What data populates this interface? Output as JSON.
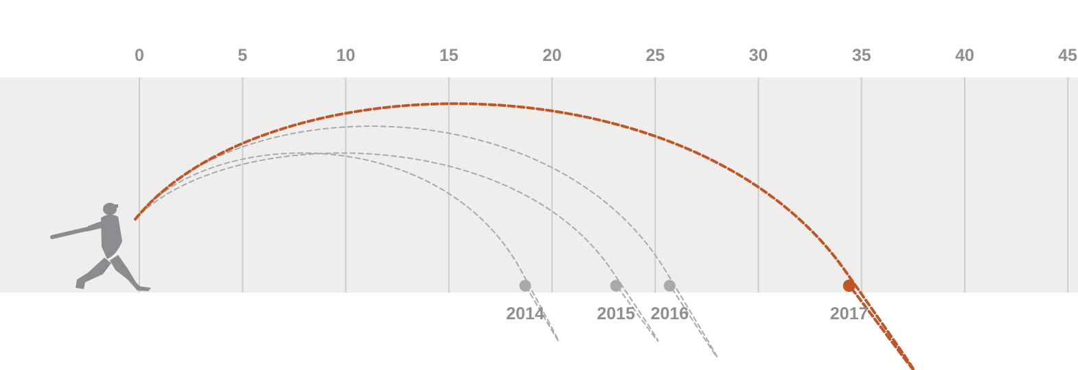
{
  "chart_data": {
    "type": "scatter",
    "title": "",
    "xlabel": "",
    "ylabel": "",
    "xlim": [
      0,
      45
    ],
    "x_ticks": [
      "0",
      "5",
      "10",
      "15",
      "20",
      "25",
      "30",
      "35",
      "40",
      "45"
    ],
    "grid": true,
    "series": [
      {
        "name": "2014",
        "x": 18.7,
        "highlight": false
      },
      {
        "name": "2015",
        "x": 23.1,
        "highlight": false
      },
      {
        "name": "2016",
        "x": 25.7,
        "highlight": false
      },
      {
        "name": "2017",
        "x": 34.4,
        "highlight": true
      }
    ],
    "colors": {
      "background_band": "#f0eeed",
      "gridline": "#cdcdcd",
      "tick_text": "#8d8f92",
      "muted_arc": "#a7a9ac",
      "highlight_arc": "#bf5627",
      "batter": "#8a8c8f"
    },
    "icon": "batter-silhouette-icon"
  }
}
